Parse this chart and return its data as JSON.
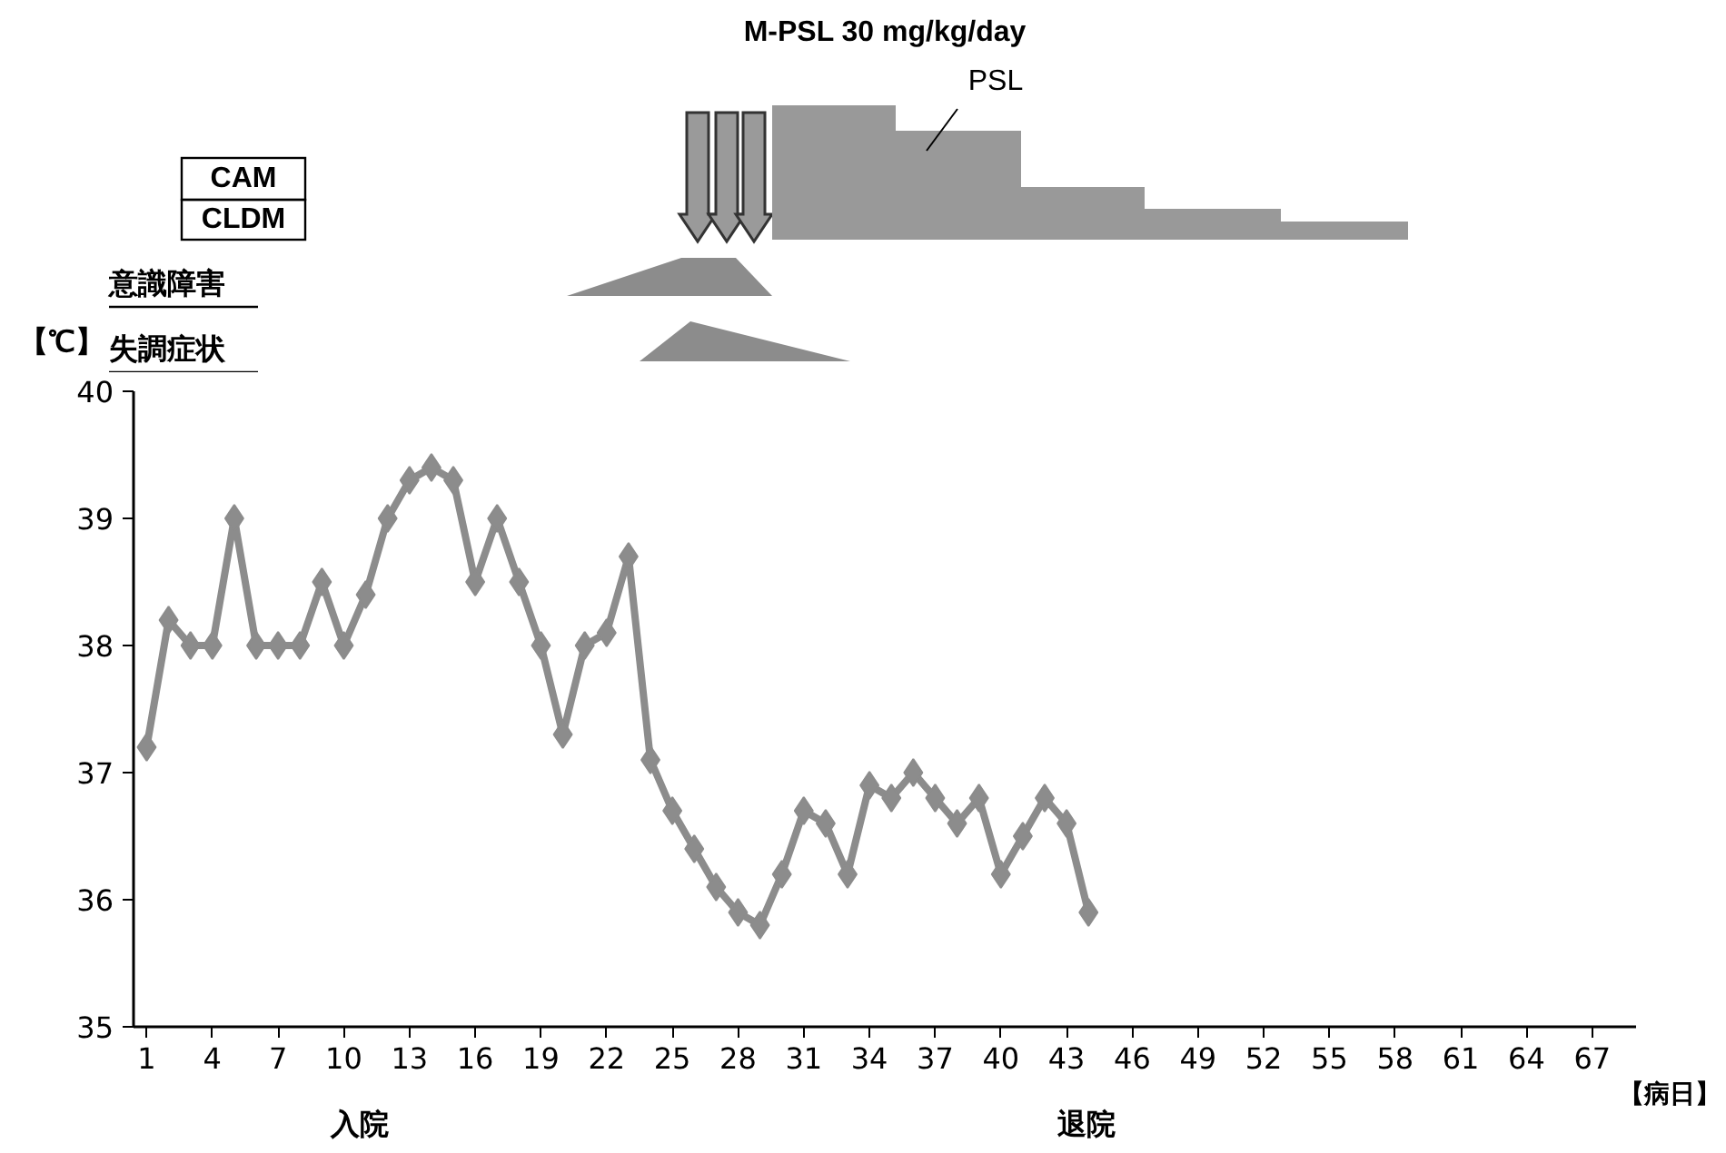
{
  "chart_data": {
    "type": "line",
    "ylabel": "【℃】",
    "xlabel": "【病日】",
    "x": [
      1,
      2,
      3,
      4,
      5,
      6,
      7,
      8,
      9,
      10,
      11,
      12,
      13,
      14,
      15,
      16,
      17,
      18,
      19,
      20,
      21,
      22,
      23,
      24,
      25,
      26,
      27,
      28,
      29,
      30,
      31,
      32,
      33,
      34,
      35,
      36,
      37,
      38,
      39,
      40,
      41,
      42,
      43,
      44
    ],
    "series": [
      {
        "color": "#8c8c8c",
        "values": [
          37.2,
          38.2,
          38.0,
          38.0,
          39.0,
          38.0,
          38.0,
          38.0,
          38.5,
          38.0,
          38.4,
          39.0,
          39.3,
          39.4,
          39.3,
          38.5,
          39.0,
          38.5,
          38.0,
          37.3,
          38.0,
          38.1,
          38.7,
          37.1,
          36.7,
          36.4,
          36.1,
          35.9,
          35.8,
          36.2,
          36.7,
          36.6,
          36.2,
          36.9,
          36.8,
          37.0,
          36.8,
          36.6,
          36.8,
          36.2,
          36.5,
          36.8,
          36.6,
          35.9
        ]
      }
    ],
    "xlim": [
      0.4,
      69
    ],
    "xticks": [
      1,
      4,
      7,
      10,
      13,
      16,
      19,
      22,
      25,
      28,
      31,
      34,
      37,
      40,
      43,
      46,
      49,
      52,
      55,
      58,
      61,
      64,
      67
    ],
    "ylim": [
      35,
      40
    ],
    "yticks": [
      35,
      36,
      37,
      38,
      39,
      40
    ],
    "marker": "diamond",
    "line_style": "solid",
    "grid": false,
    "annotations": [
      "CAM",
      "CLDM",
      "意識障害",
      "失調症状",
      "M-PSL 30 mg/kg/day",
      "PSL",
      "入院",
      "退院"
    ]
  }
}
